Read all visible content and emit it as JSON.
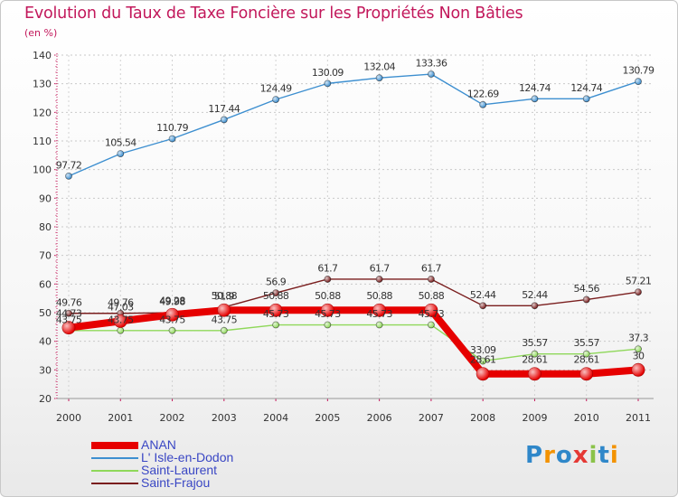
{
  "title": "Evolution du Taux de Taxe Foncière sur les Propriétés Non Bâties",
  "unit_label": "(en %)",
  "logo": {
    "text": "Proxiti",
    "letters": [
      {
        "ch": "P",
        "color": "#2f87c9"
      },
      {
        "ch": "r",
        "color": "#f39200"
      },
      {
        "ch": "o",
        "color": "#2f87c9"
      },
      {
        "ch": "x",
        "color": "#e53935"
      },
      {
        "ch": "i",
        "color": "#8bc34a"
      },
      {
        "ch": "t",
        "color": "#2f87c9"
      },
      {
        "ch": "i",
        "color": "#f39200"
      }
    ]
  },
  "chart_data": {
    "type": "line",
    "title": "Evolution du Taux de Taxe Foncière sur les Propriétés Non Bâties",
    "xlabel": "",
    "ylabel": "(en %)",
    "x": [
      "2000",
      "2001",
      "2002",
      "2003",
      "2004",
      "2005",
      "2006",
      "2007",
      "2008",
      "2009",
      "2010",
      "2011"
    ],
    "ylim": [
      20,
      140
    ],
    "yticks": [
      20,
      30,
      40,
      50,
      60,
      70,
      80,
      90,
      100,
      110,
      120,
      130,
      140
    ],
    "grid": true,
    "series": [
      {
        "name": "L' Isle-en-Dodon",
        "color": "#3d8fd0",
        "values": [
          97.72,
          105.54,
          110.79,
          117.44,
          124.49,
          130.09,
          132.04,
          133.36,
          122.69,
          124.74,
          124.74,
          130.79
        ],
        "labels": [
          "97.72",
          "105.54",
          "110.79",
          "117.44",
          "124.49",
          "130.09",
          "132.04",
          "133.36",
          "122.69",
          "124.74",
          "124.74",
          "130.79"
        ]
      },
      {
        "name": "Saint-Frajou",
        "color": "#7a1e1e",
        "values": [
          49.76,
          49.76,
          49.98,
          51.9,
          56.9,
          61.7,
          61.7,
          61.7,
          52.44,
          52.44,
          54.56,
          57.21
        ],
        "labels": [
          "49.76",
          "49.76",
          "49.98",
          "51.9",
          "56.9",
          "61.7",
          "61.7",
          "61.7",
          "52.44",
          "52.44",
          "54.56",
          "57.21"
        ]
      },
      {
        "name": "Saint-Laurent",
        "color": "#8fd85a",
        "values": [
          43.75,
          43.75,
          43.75,
          43.75,
          45.73,
          45.73,
          45.73,
          45.73,
          33.09,
          35.57,
          35.57,
          37.3
        ],
        "labels": [
          "43.75",
          "43.75",
          "43.75",
          "43.75",
          "45.73",
          "45.73",
          "45.73",
          "45.73",
          "33.09",
          "35.57",
          "35.57",
          "37.3"
        ]
      },
      {
        "name": "ANAN",
        "color": "#e60000",
        "values": [
          44.73,
          47.03,
          49.28,
          50.88,
          50.88,
          50.88,
          50.88,
          50.88,
          28.61,
          28.61,
          28.61,
          30
        ],
        "labels": [
          "44.73",
          "47.03",
          "49.28",
          "50.88",
          "50.88",
          "50.88",
          "50.88",
          "50.88",
          "28.61",
          "28.61",
          "28.61",
          "30"
        ]
      }
    ],
    "legend": {
      "placement": "bottom-left",
      "order": [
        "ANAN",
        "L' Isle-en-Dodon",
        "Saint-Laurent",
        "Saint-Frajou"
      ]
    }
  }
}
